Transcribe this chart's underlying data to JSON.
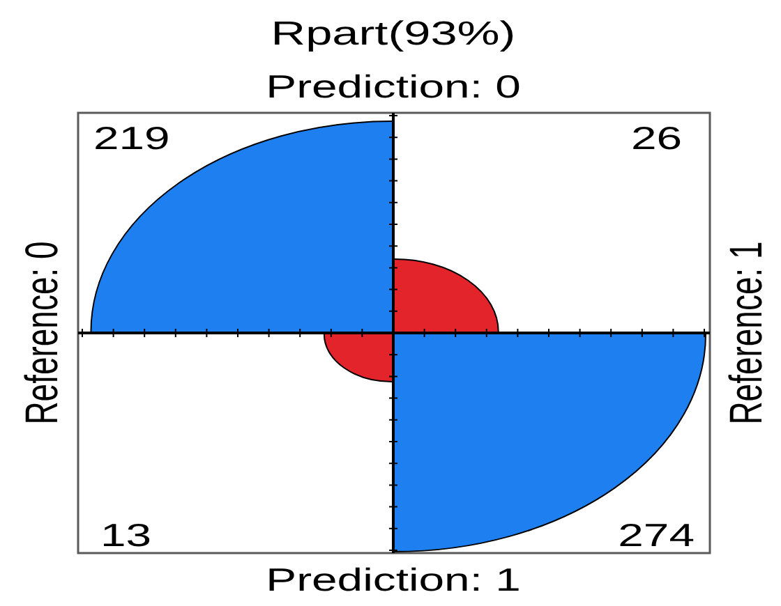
{
  "chart_data": {
    "type": "other",
    "title": "Rpart(93%)",
    "categories": [
      "Reference: 0",
      "Reference: 1"
    ],
    "series": [
      {
        "name": "Prediction: 0",
        "colors": [
          "#1e80f0",
          "#e3242b"
        ],
        "values": [
          219,
          26
        ]
      },
      {
        "name": "Prediction: 1",
        "colors": [
          "#e3242b",
          "#1e80f0"
        ],
        "values": [
          13,
          274
        ]
      }
    ],
    "data_labels": true
  }
}
